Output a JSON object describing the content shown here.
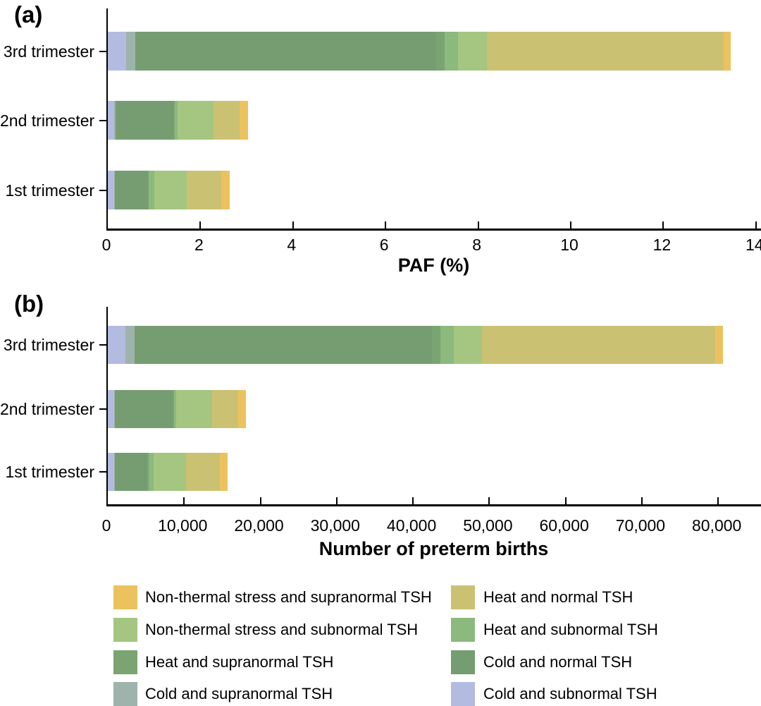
{
  "figure": {
    "panel_a_label": "(a)",
    "panel_b_label": "(b)"
  },
  "chart_data": [
    {
      "type": "bar",
      "orientation": "horizontal",
      "stacked": true,
      "panel_label": "(a)",
      "xlabel": "PAF (%)",
      "categories": [
        "3rd trimester",
        "2nd trimester",
        "1st trimester"
      ],
      "series": [
        {
          "name": "Cold and subnormal TSH",
          "color": "#b3bbe0",
          "values": [
            0.39,
            0.14,
            0.14
          ]
        },
        {
          "name": "Cold and supranormal TSH",
          "color": "#9eb3ab",
          "values": [
            0.2,
            0.02,
            0.01
          ]
        },
        {
          "name": "Cold and normal TSH",
          "color": "#769d71",
          "values": [
            6.5,
            1.26,
            0.72
          ]
        },
        {
          "name": "Heat and supranormal TSH",
          "color": "#7aa472",
          "values": [
            0.18,
            0.03,
            0.02
          ]
        },
        {
          "name": "Heat and subnormal TSH",
          "color": "#8cb97e",
          "values": [
            0.3,
            0.05,
            0.11
          ]
        },
        {
          "name": "Non-thermal stress and subnormal TSH",
          "color": "#a4c681",
          "values": [
            0.62,
            0.79,
            0.71
          ]
        },
        {
          "name": "Heat and normal TSH",
          "color": "#cbc173",
          "values": [
            5.11,
            0.56,
            0.74
          ]
        },
        {
          "name": "Non-thermal stress and supranormal TSH",
          "color": "#ecc25f",
          "values": [
            0.16,
            0.18,
            0.18
          ]
        }
      ],
      "totals": [
        13.46,
        3.03,
        2.63
      ],
      "xlim": [
        0,
        14.14
      ],
      "xticks": [
        0,
        2,
        4,
        6,
        8,
        10,
        12,
        14
      ],
      "xtick_labels": [
        "0",
        "2",
        "4",
        "6",
        "8",
        "10",
        "12",
        "14"
      ],
      "grid": false
    },
    {
      "type": "bar",
      "orientation": "horizontal",
      "stacked": true,
      "panel_label": "(b)",
      "xlabel": "Number of preterm births",
      "categories": [
        "3rd trimester",
        "2nd trimester",
        "1st trimester"
      ],
      "series": [
        {
          "name": "Cold and subnormal TSH",
          "color": "#b3bbe0",
          "values": [
            2340,
            840,
            840
          ]
        },
        {
          "name": "Cold and supranormal TSH",
          "color": "#9eb3ab",
          "values": [
            1200,
            120,
            60
          ]
        },
        {
          "name": "Cold and normal TSH",
          "color": "#769d71",
          "values": [
            38950,
            7540,
            4310
          ]
        },
        {
          "name": "Heat and supranormal TSH",
          "color": "#7aa472",
          "values": [
            1100,
            180,
            120
          ]
        },
        {
          "name": "Heat and subnormal TSH",
          "color": "#8cb97e",
          "values": [
            1800,
            300,
            660
          ]
        },
        {
          "name": "Non-thermal stress and subnormal TSH",
          "color": "#a4c681",
          "values": [
            3700,
            4730,
            4250
          ]
        },
        {
          "name": "Heat and normal TSH",
          "color": "#cbc173",
          "values": [
            30550,
            3350,
            4430
          ]
        },
        {
          "name": "Non-thermal stress and supranormal TSH",
          "color": "#ecc25f",
          "values": [
            960,
            1080,
            1080
          ]
        }
      ],
      "totals": [
        80600,
        18140,
        15750
      ],
      "xlim": [
        0,
        85800
      ],
      "xticks": [
        0,
        10000,
        20000,
        30000,
        40000,
        50000,
        60000,
        70000,
        80000
      ],
      "xtick_labels": [
        "0",
        "10,000",
        "20,000",
        "30,000",
        "40,000",
        "50,000",
        "60,000",
        "70,000",
        "80,000"
      ],
      "grid": false
    }
  ],
  "legend": {
    "columns": [
      {
        "items": [
          {
            "label": "Non-thermal stress and supranormal TSH",
            "color": "#ecc25f"
          },
          {
            "label": "Non-thermal stress and subnormal TSH",
            "color": "#a4c681"
          },
          {
            "label": "Heat and supranormal TSH",
            "color": "#7aa472"
          },
          {
            "label": "Cold and supranormal TSH",
            "color": "#9eb3ab"
          }
        ]
      },
      {
        "items": [
          {
            "label": "Heat and normal TSH",
            "color": "#cbc173"
          },
          {
            "label": "Heat and subnormal TSH",
            "color": "#8cb97e"
          },
          {
            "label": "Cold and normal TSH",
            "color": "#769d71"
          },
          {
            "label": "Cold and subnormal TSH",
            "color": "#b3bbe0"
          }
        ]
      }
    ]
  }
}
